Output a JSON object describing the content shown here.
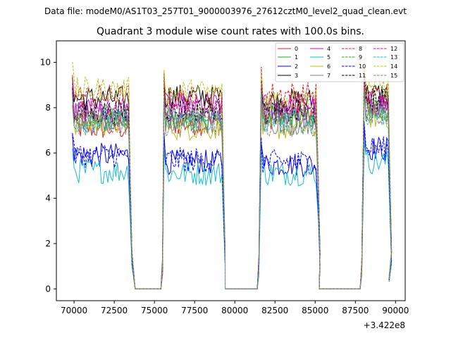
{
  "suptitle": "Data file: modeM0/AS1T03_257T01_9000003976_27612cztM0_level2_quad_clean.evt",
  "chart_data": {
    "type": "line",
    "title": "Quadrant 3 module wise count rates with 100.0s bins.",
    "xlabel": "",
    "ylabel": "",
    "x_offset_label": "+3.422e8",
    "xlim": [
      68900,
      90600
    ],
    "ylim": [
      -0.52,
      10.95
    ],
    "x_ticks": [
      70000,
      72500,
      75000,
      77500,
      80000,
      82500,
      85000,
      87500,
      90000
    ],
    "x_tick_labels": [
      "70000",
      "72500",
      "75000",
      "77500",
      "80000",
      "82500",
      "85000",
      "87500",
      "90000"
    ],
    "y_ticks": [
      0,
      2,
      4,
      6,
      8,
      10
    ],
    "y_tick_labels": [
      "0",
      "2",
      "4",
      "6",
      "8",
      "10"
    ],
    "legend_location": "upper-right",
    "legend_columns": 4,
    "time_segments": [
      {
        "start": 69900,
        "rise": null,
        "flat_from": 73450,
        "flat_to": 75500,
        "end": 75700
      },
      {
        "start": 75700,
        "flat_from": 79300,
        "flat_to": 81500
      },
      {
        "start": 81700,
        "flat_from": 85200,
        "flat_to": 87900
      },
      {
        "start": 88000,
        "end": 89600
      }
    ],
    "series": [
      {
        "name": "0",
        "color": "#d62728",
        "dash": "solid",
        "levels": [
          7.1,
          7.3,
          7.6,
          8.1
        ]
      },
      {
        "name": "1",
        "color": "#2ca02c",
        "dash": "solid",
        "levels": [
          7.5,
          7.5,
          7.6,
          8.0
        ]
      },
      {
        "name": "2",
        "color": "#0000ff",
        "dash": "solid",
        "levels": [
          5.9,
          5.6,
          5.5,
          6.2
        ]
      },
      {
        "name": "3",
        "color": "#000000",
        "dash": "solid",
        "levels": [
          8.4,
          8.5,
          8.3,
          8.6
        ]
      },
      {
        "name": "4",
        "color": "#cc00cc",
        "dash": "solid",
        "levels": [
          7.8,
          8.1,
          8.1,
          8.2
        ]
      },
      {
        "name": "5",
        "color": "#17becf",
        "dash": "solid",
        "levels": [
          5.2,
          5.1,
          5.1,
          5.6
        ]
      },
      {
        "name": "6",
        "color": "#bcbd22",
        "dash": "solid",
        "levels": [
          7.3,
          7.1,
          7.1,
          7.6
        ]
      },
      {
        "name": "7",
        "color": "#7f7f7f",
        "dash": "solid",
        "levels": [
          7.5,
          7.4,
          7.3,
          7.8
        ]
      },
      {
        "name": "8",
        "color": "#d62728",
        "dash": "dashed",
        "levels": [
          8.5,
          8.4,
          8.6,
          8.6
        ]
      },
      {
        "name": "9",
        "color": "#2ca02c",
        "dash": "dashed",
        "levels": [
          7.7,
          7.6,
          7.7,
          7.9
        ]
      },
      {
        "name": "10",
        "color": "#0000ff",
        "dash": "dashed",
        "levels": [
          5.9,
          5.7,
          5.6,
          6.2
        ]
      },
      {
        "name": "11",
        "color": "#000000",
        "dash": "dashed",
        "levels": [
          7.8,
          7.9,
          7.8,
          8.3
        ]
      },
      {
        "name": "12",
        "color": "#cc00cc",
        "dash": "dashed",
        "levels": [
          7.9,
          7.8,
          7.9,
          8.1
        ]
      },
      {
        "name": "13",
        "color": "#17becf",
        "dash": "dashed",
        "levels": [
          7.4,
          7.4,
          7.4,
          7.7
        ]
      },
      {
        "name": "14",
        "color": "#bcbd22",
        "dash": "dashed",
        "levels": [
          8.8,
          8.7,
          8.4,
          9.0
        ]
      },
      {
        "name": "15",
        "color": "#7f7f7f",
        "dash": "dashed",
        "levels": [
          7.3,
          7.3,
          7.3,
          7.7
        ]
      }
    ]
  }
}
